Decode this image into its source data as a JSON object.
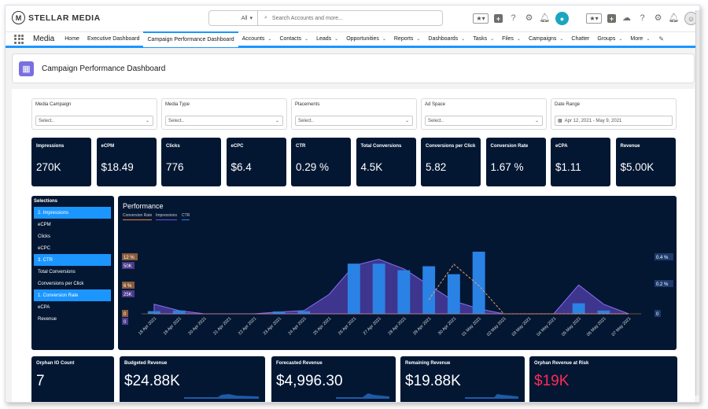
{
  "header": {
    "brand": "STELLAR MEDIA",
    "brand_mark": "M",
    "search_scope": "All",
    "search_placeholder": "Search Accounts and more..."
  },
  "nav": {
    "app_name": "Media",
    "items": [
      {
        "label": "Home",
        "menu": false
      },
      {
        "label": "Executive Dashboard",
        "menu": false
      },
      {
        "label": "Campaign Performance Dashboard",
        "menu": false,
        "active": true
      },
      {
        "label": "Accounts",
        "menu": true
      },
      {
        "label": "Contacts",
        "menu": true
      },
      {
        "label": "Leads",
        "menu": true
      },
      {
        "label": "Opportunities",
        "menu": true
      },
      {
        "label": "Reports",
        "menu": true
      },
      {
        "label": "Dashboards",
        "menu": true
      },
      {
        "label": "Tasks",
        "menu": true
      },
      {
        "label": "Files",
        "menu": true
      },
      {
        "label": "Campaigns",
        "menu": true
      },
      {
        "label": "Chatter",
        "menu": false
      },
      {
        "label": "Groups",
        "menu": true
      },
      {
        "label": "More",
        "menu": true
      }
    ]
  },
  "page_title": "Campaign Performance Dashboard",
  "filters": [
    {
      "label": "Media Campaign",
      "value": "Select.."
    },
    {
      "label": "Media Type",
      "value": "Select.."
    },
    {
      "label": "Placements",
      "value": "Select.."
    },
    {
      "label": "Ad Space",
      "value": "Select.."
    },
    {
      "label": "Date Range",
      "value": "Apr 12, 2021 - May 9, 2021"
    }
  ],
  "kpis": [
    {
      "label": "Impressions",
      "value": "270K"
    },
    {
      "label": "eCPM",
      "value": "$18.49"
    },
    {
      "label": "Clicks",
      "value": "776"
    },
    {
      "label": "eCPC",
      "value": "$6.4"
    },
    {
      "label": "CTR",
      "value": "0.29 %"
    },
    {
      "label": "Total Conversions",
      "value": "4.5K"
    },
    {
      "label": "Conversions per Click",
      "value": "5.82"
    },
    {
      "label": "Conversion Rate",
      "value": "1.67 %"
    },
    {
      "label": "eCPA",
      "value": "$1.11"
    },
    {
      "label": "Revenue",
      "value": "$5.00K"
    }
  ],
  "selections": {
    "title": "Selections",
    "items": [
      {
        "label": "2. Impressions",
        "selected": true
      },
      {
        "label": "eCPM",
        "selected": false
      },
      {
        "label": "Clicks",
        "selected": false
      },
      {
        "label": "eCPC",
        "selected": false
      },
      {
        "label": "3. CTR",
        "selected": true
      },
      {
        "label": "Total Conversions",
        "selected": false
      },
      {
        "label": "Conversions per Click",
        "selected": false
      },
      {
        "label": "1. Conversion Rate",
        "selected": true
      },
      {
        "label": "eCPA",
        "selected": false
      },
      {
        "label": "Revenue",
        "selected": false
      }
    ]
  },
  "chart_data": {
    "type": "bar",
    "title": "Performance",
    "legend": [
      "Conversion Rate",
      "Impressions",
      "CTR"
    ],
    "legend_position": "top-left",
    "grid": false,
    "categories": [
      "18 Apr 2021",
      "19 Apr 2021",
      "20 Apr 2021",
      "21 Apr 2021",
      "22 Apr 2021",
      "23 Apr 2021",
      "24 Apr 2021",
      "25 Apr 2021",
      "26 Apr 2021",
      "27 Apr 2021",
      "28 Apr 2021",
      "29 Apr 2021",
      "30 Apr 2021",
      "01 May 2021",
      "02 May 2021",
      "03 May 2021",
      "04 May 2021",
      "05 May 2021",
      "06 May 2021",
      "07 May 2021"
    ],
    "axes": {
      "left_conv_rate": {
        "ticks": [
          "12 %",
          "6 %",
          "0"
        ],
        "range": [
          0,
          12
        ]
      },
      "left_impressions": {
        "ticks": [
          "50K",
          "25K",
          "0"
        ],
        "range": [
          0,
          50000
        ]
      },
      "right_ctr": {
        "ticks": [
          "0.4 %",
          "0.2 %",
          "0"
        ],
        "range": [
          0,
          0.4
        ]
      }
    },
    "series": [
      {
        "name": "Impressions",
        "values": [
          2000,
          2500,
          0,
          0,
          0,
          1800,
          2000,
          0,
          38000,
          38000,
          33000,
          36000,
          30000,
          47000,
          0,
          0,
          0,
          0,
          0,
          0
        ],
        "display": "bar"
      },
      {
        "name": "Conversion Rate",
        "values": [
          1.5,
          0.5,
          0,
          0,
          0,
          0.3,
          0.5,
          3,
          7.5,
          8.5,
          7.0,
          4.5,
          2.0,
          0.8,
          0,
          0,
          0,
          4.5,
          1.5,
          0
        ],
        "display": "area"
      },
      {
        "name": "CTR",
        "values": [
          null,
          null,
          null,
          null,
          null,
          null,
          null,
          null,
          null,
          null,
          null,
          0.1,
          0.35,
          0.2,
          0,
          0,
          0,
          0,
          0,
          0
        ],
        "display": "dashed-line"
      }
    ],
    "extra_bars": {
      "05 May 2021": 8000,
      "06 May 2021": 2500
    }
  },
  "bottom_kpis": [
    {
      "label": "Orphan IO Count",
      "value": "7",
      "color": "#ffffff"
    },
    {
      "label": "Budgeted Revenue",
      "value": "$24.88K",
      "color": "#ffffff"
    },
    {
      "label": "Forecasted Revenue",
      "value": "$4,996.30",
      "color": "#ffffff"
    },
    {
      "label": "Remaining Revenue",
      "value": "$19.88K",
      "color": "#ffffff"
    },
    {
      "label": "Orphan Revenue at Risk",
      "value": "$19K",
      "color": "#ff2a55"
    }
  ],
  "colors": {
    "panel": "#031733",
    "accent": "#1b96ff",
    "bar": "#2a82e4",
    "area": "#6e4fd8",
    "risk": "#ff2a55"
  }
}
